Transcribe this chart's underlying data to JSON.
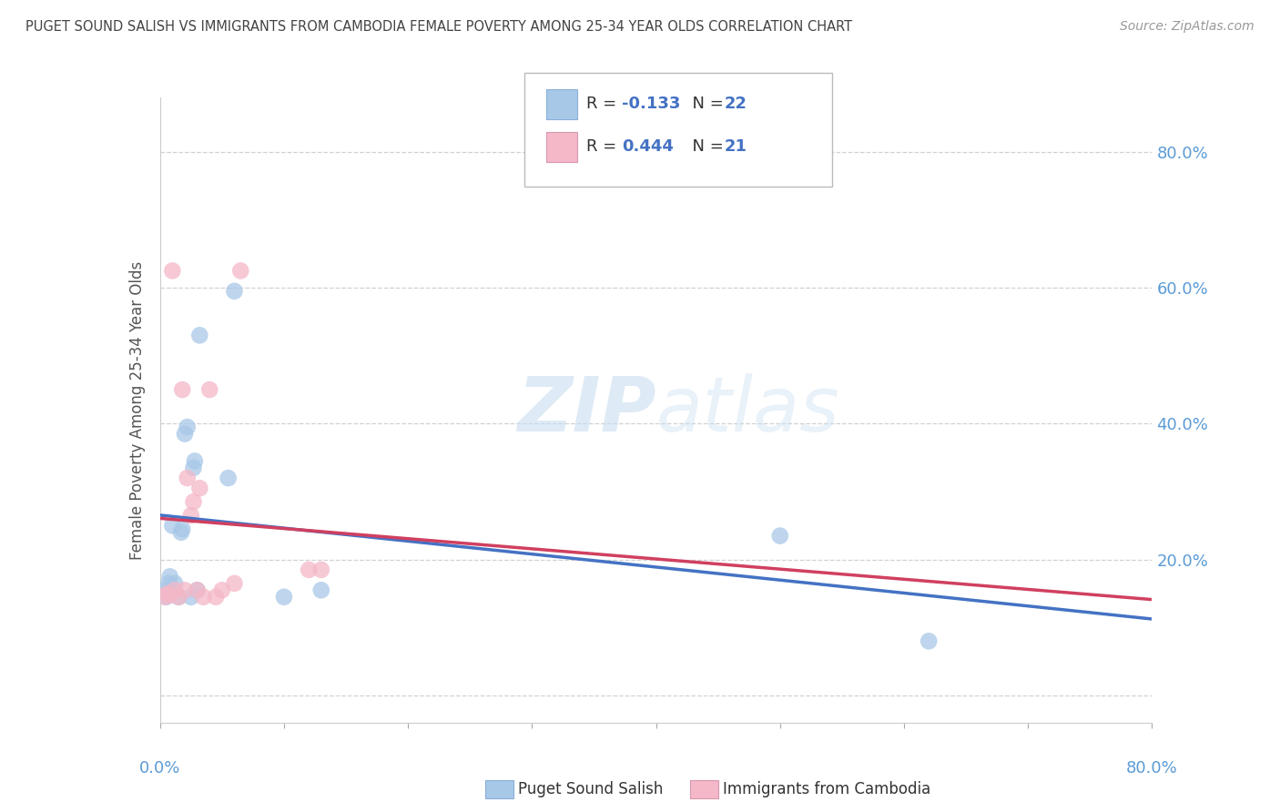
{
  "title": "PUGET SOUND SALISH VS IMMIGRANTS FROM CAMBODIA FEMALE POVERTY AMONG 25-34 YEAR OLDS CORRELATION CHART",
  "source": "Source: ZipAtlas.com",
  "ylabel": "Female Poverty Among 25-34 Year Olds",
  "xmin": 0.0,
  "xmax": 0.8,
  "ymin": -0.04,
  "ymax": 0.88,
  "series1_name": "Puget Sound Salish",
  "series1_color": "#a8c8e8",
  "series1_line_color": "#4472c4",
  "series1_R": -0.133,
  "series1_N": 22,
  "series2_name": "Immigrants from Cambodia",
  "series2_color": "#f4b8c8",
  "series2_line_color": "#d04060",
  "series2_R": 0.444,
  "series2_N": 21,
  "series1_x": [
    0.005,
    0.005,
    0.007,
    0.008,
    0.01,
    0.012,
    0.015,
    0.017,
    0.018,
    0.02,
    0.022,
    0.025,
    0.027,
    0.028,
    0.03,
    0.032,
    0.055,
    0.06,
    0.1,
    0.13,
    0.5,
    0.62
  ],
  "series1_y": [
    0.145,
    0.155,
    0.165,
    0.175,
    0.25,
    0.165,
    0.145,
    0.24,
    0.245,
    0.385,
    0.395,
    0.145,
    0.335,
    0.345,
    0.155,
    0.53,
    0.32,
    0.595,
    0.145,
    0.155,
    0.235,
    0.08
  ],
  "series2_x": [
    0.004,
    0.006,
    0.008,
    0.01,
    0.012,
    0.015,
    0.018,
    0.02,
    0.022,
    0.025,
    0.027,
    0.03,
    0.032,
    0.035,
    0.04,
    0.045,
    0.05,
    0.06,
    0.065,
    0.12,
    0.13
  ],
  "series2_y": [
    0.145,
    0.15,
    0.148,
    0.625,
    0.155,
    0.145,
    0.45,
    0.155,
    0.32,
    0.265,
    0.285,
    0.155,
    0.305,
    0.145,
    0.45,
    0.145,
    0.155,
    0.165,
    0.625,
    0.185,
    0.185
  ],
  "watermark_zip": "ZIP",
  "watermark_atlas": "atlas",
  "background_color": "#ffffff",
  "grid_color": "#cccccc",
  "tick_color": "#5b9bd5",
  "ylabel_color": "#555555"
}
